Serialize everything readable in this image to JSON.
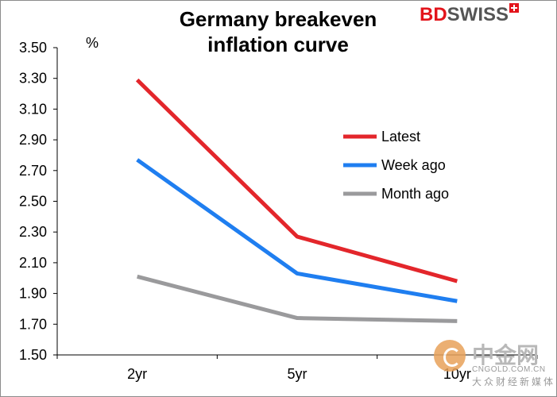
{
  "chart_data": {
    "type": "line",
    "title_lines": [
      "Germany breakeven",
      "inflation curve"
    ],
    "ylabel": "%",
    "xlabel": "",
    "categories": [
      "2yr",
      "5yr",
      "10yr"
    ],
    "ylim": [
      1.5,
      3.5
    ],
    "yticks": [
      "3.50",
      "3.30",
      "3.10",
      "2.90",
      "2.70",
      "2.50",
      "2.30",
      "2.10",
      "1.90",
      "1.70",
      "1.50"
    ],
    "grid": false,
    "legend_position": "right",
    "series": [
      {
        "name": "Latest",
        "color": "#e3262b",
        "values": [
          3.29,
          2.27,
          1.98
        ]
      },
      {
        "name": "Week ago",
        "color": "#1f7ef0",
        "values": [
          2.77,
          2.03,
          1.85
        ]
      },
      {
        "name": "Month ago",
        "color": "#9a9a9c",
        "values": [
          2.01,
          1.74,
          1.72
        ]
      }
    ]
  },
  "logo": {
    "part1": "BD",
    "part2": "SWISS"
  },
  "watermark": {
    "cn": "中金网",
    "url": "CNGOLD.COM.CN",
    "sub": "大众财经新媒体"
  }
}
